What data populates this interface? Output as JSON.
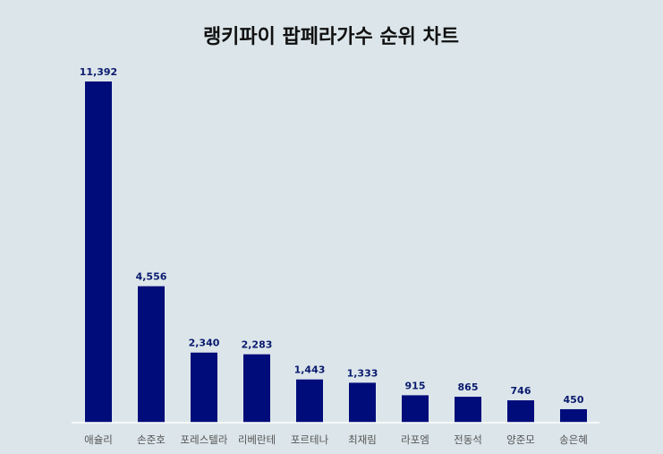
{
  "chart_data": {
    "type": "bar",
    "title": "랭키파이 팝페라가수 순위 차트",
    "categories": [
      "애슐리",
      "손준호",
      "포레스텔라",
      "리베란테",
      "포르테나",
      "최재림",
      "라포엠",
      "전동석",
      "양준모",
      "송은혜"
    ],
    "values": [
      11392,
      4556,
      2340,
      2283,
      1443,
      1333,
      915,
      865,
      746,
      450
    ],
    "value_labels": [
      "11,392",
      "4,556",
      "2,340",
      "2,283",
      "1,443",
      "1,333",
      "915",
      "865",
      "746",
      "450"
    ],
    "ylim": [
      0,
      11392
    ],
    "grid": false,
    "legend": "none",
    "colors": {
      "bar": "#000c7a",
      "value_label": "#0a1a6e",
      "axis": "#ffffff",
      "background": "#dce6ea"
    }
  }
}
